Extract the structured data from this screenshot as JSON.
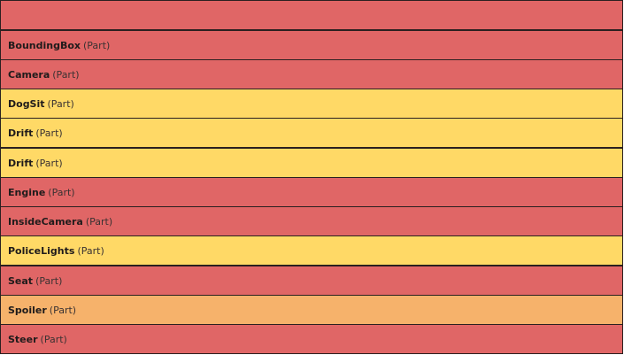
{
  "list": {
    "header": {
      "label": ""
    },
    "rows": [
      {
        "name": "BoundingBox",
        "type": "(Part)",
        "color": "#e06666"
      },
      {
        "name": "Camera",
        "type": "(Part)",
        "color": "#e06666"
      },
      {
        "name": "DogSit",
        "type": "(Part)",
        "color": "#ffd966"
      },
      {
        "name": "Drift",
        "type": "(Part)",
        "color": "#ffd966"
      },
      {
        "name": "Drift",
        "type": "(Part)",
        "color": "#ffd966"
      },
      {
        "name": "Engine",
        "type": "(Part)",
        "color": "#e06666"
      },
      {
        "name": "InsideCamera",
        "type": "(Part)",
        "color": "#e06666"
      },
      {
        "name": "PoliceLights",
        "type": "(Part)",
        "color": "#ffd966"
      },
      {
        "name": "Seat",
        "type": "(Part)",
        "color": "#e06666"
      },
      {
        "name": "Spoiler",
        "type": "(Part)",
        "color": "#f6b26b"
      },
      {
        "name": "Steer",
        "type": "(Part)",
        "color": "#e06666"
      }
    ]
  }
}
